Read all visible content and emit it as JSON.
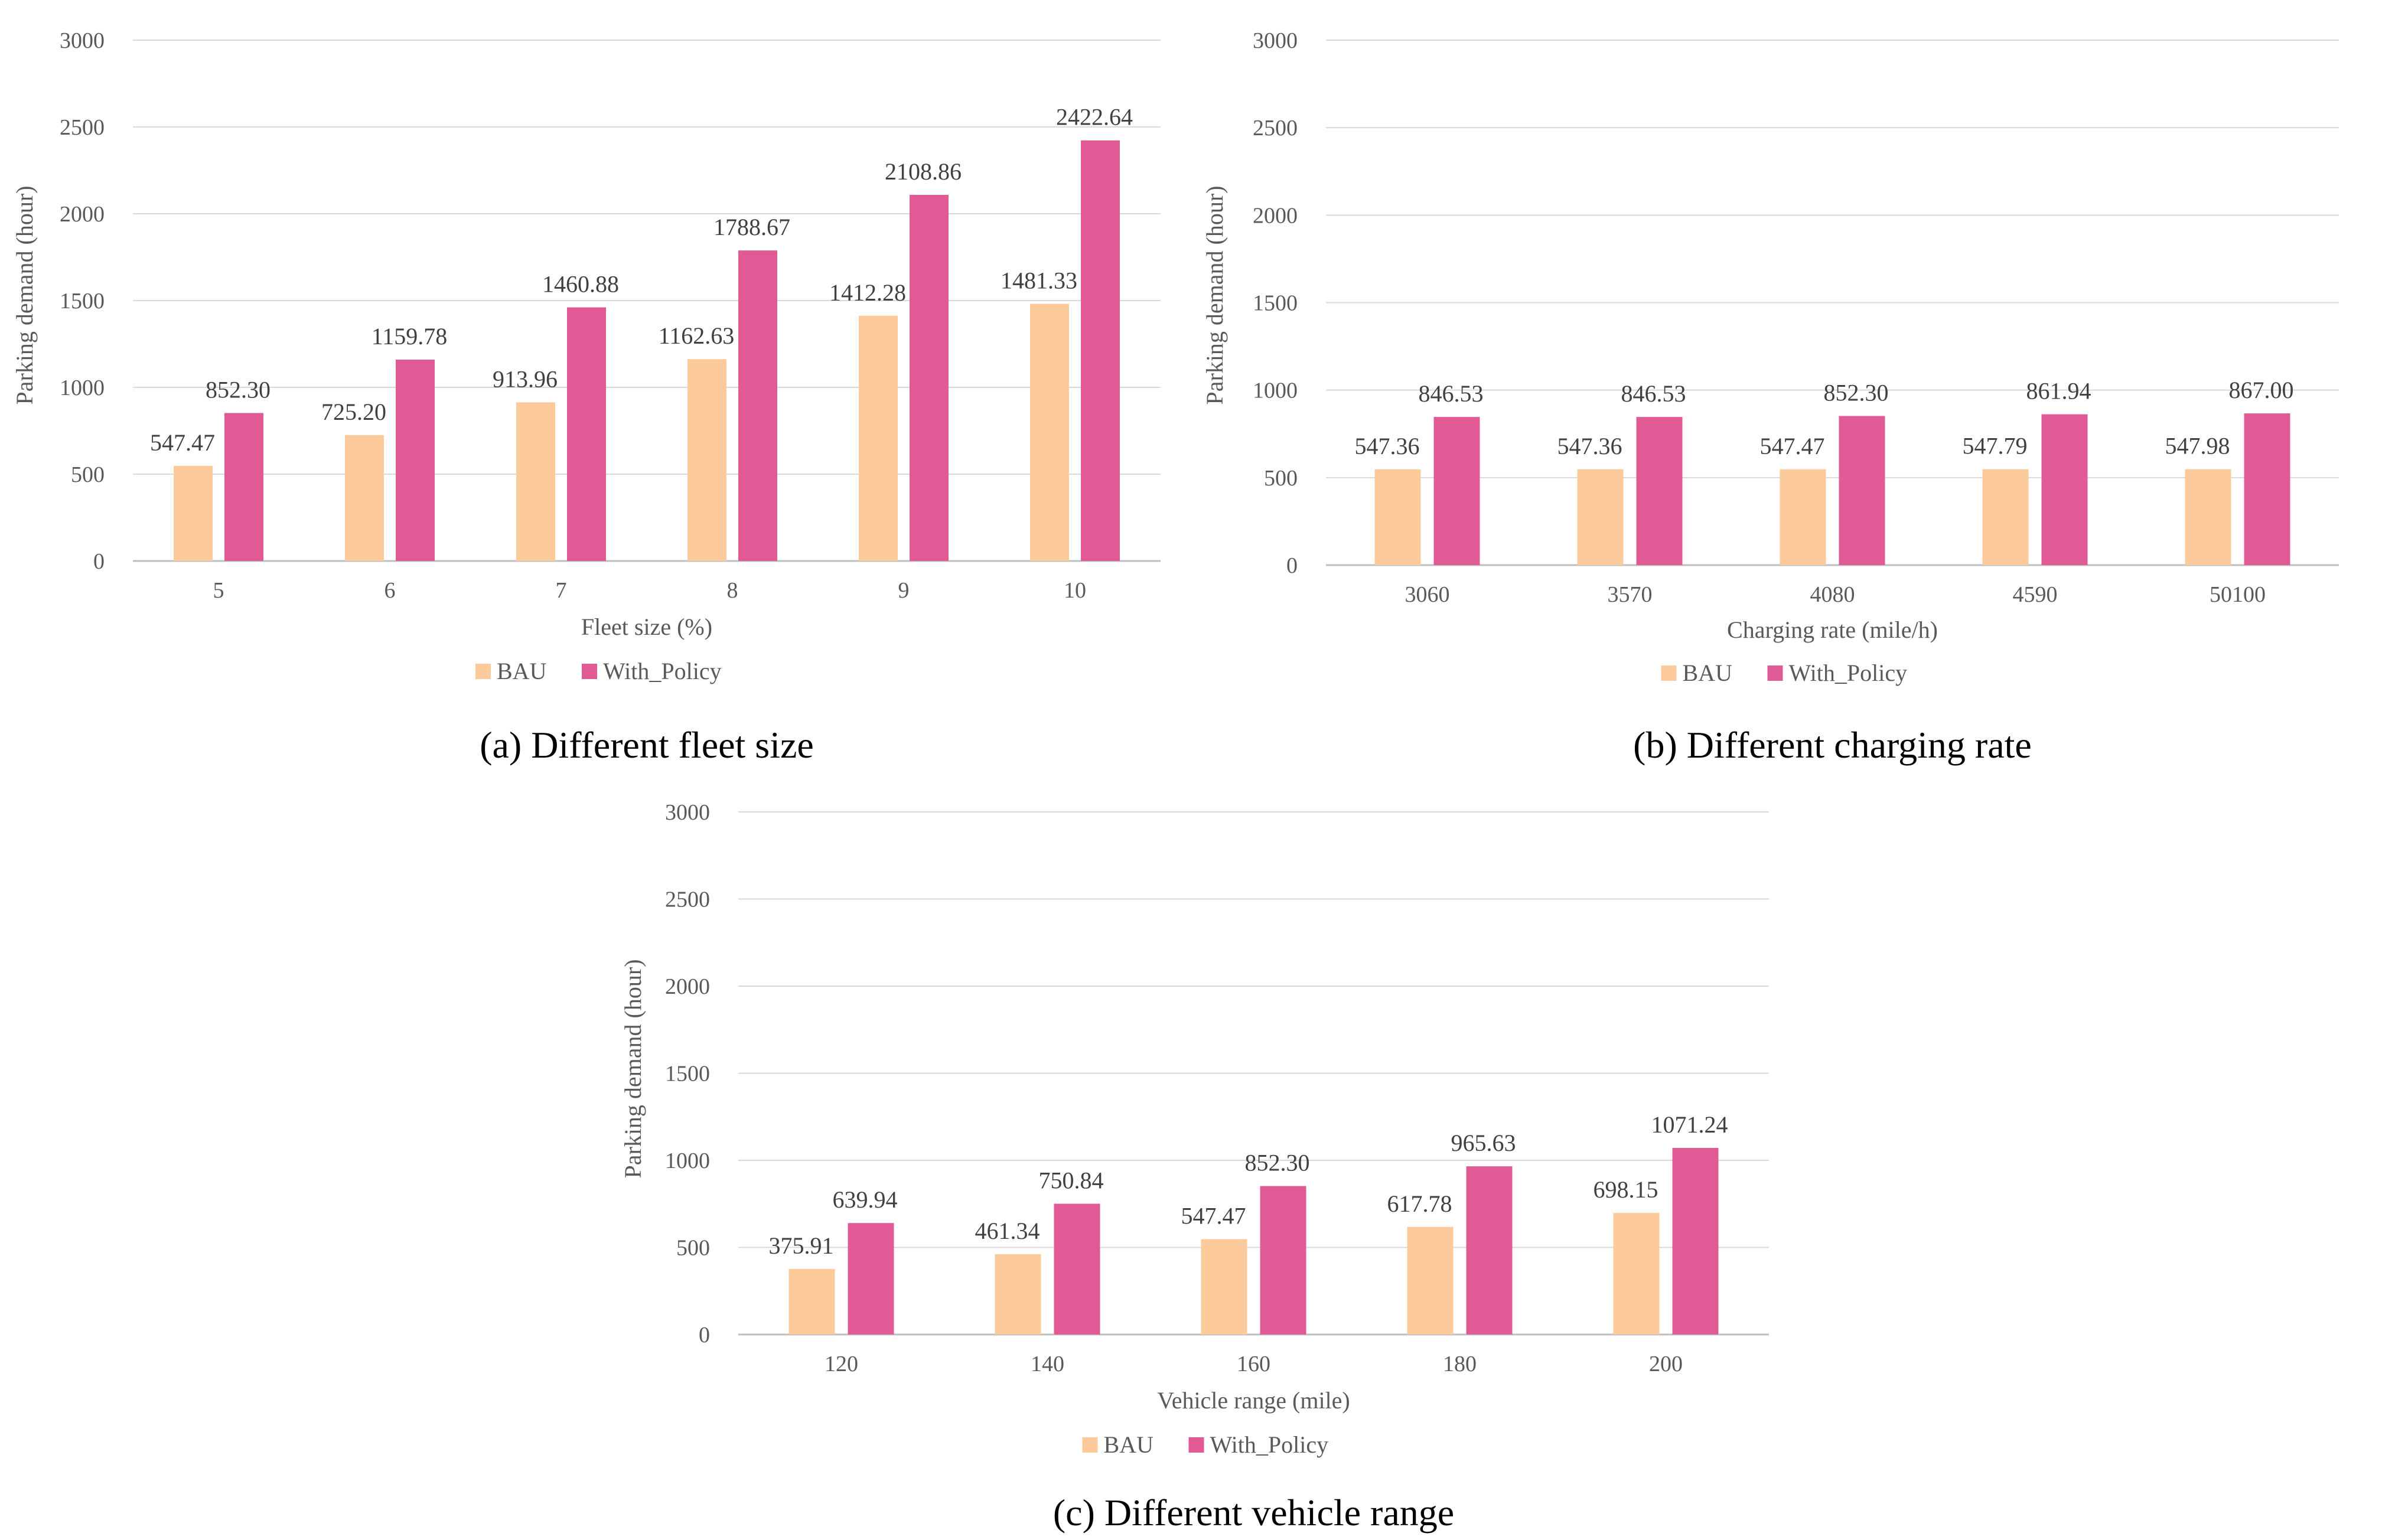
{
  "colors": {
    "bau": "#FDCA9B",
    "policy": "#E05A96",
    "grid": "#D9D9D9",
    "axis": "#BFBFBF"
  },
  "chart_data": [
    {
      "id": "a",
      "type": "bar",
      "caption": "(a) Different fleet size",
      "xlabel": "Fleet size (%)",
      "ylabel": "Parking demand (hour)",
      "ylim": [
        0,
        3000
      ],
      "yticks": [
        "0",
        "500",
        "1000",
        "1500",
        "2000",
        "2500",
        "3000"
      ],
      "categories": [
        "5",
        "6",
        "7",
        "8",
        "9",
        "10"
      ],
      "legend": [
        "BAU",
        "With_Policy"
      ],
      "series": [
        {
          "name": "BAU",
          "values": [
            547.47,
            725.2,
            913.96,
            1162.63,
            1412.28,
            1481.33
          ],
          "labels": [
            "547.47",
            "725.20",
            "913.96",
            "1162.63",
            "1412.28",
            "1481.33"
          ]
        },
        {
          "name": "With_Policy",
          "values": [
            852.3,
            1159.78,
            1460.88,
            1788.67,
            2108.86,
            2422.64
          ],
          "labels": [
            "852.30",
            "1159.78",
            "1460.88",
            "1788.67",
            "2108.86",
            "2422.64"
          ]
        }
      ]
    },
    {
      "id": "b",
      "type": "bar",
      "caption": "(b) Different charging rate",
      "xlabel": "Charging rate (mile/h)",
      "ylabel": "Parking demand (hour)",
      "ylim": [
        0,
        3000
      ],
      "yticks": [
        "0",
        "500",
        "1000",
        "1500",
        "2000",
        "2500",
        "3000"
      ],
      "categories": [
        "3060",
        "3570",
        "4080",
        "4590",
        "50100"
      ],
      "legend": [
        "BAU",
        "With_Policy"
      ],
      "series": [
        {
          "name": "BAU",
          "values": [
            547.36,
            547.36,
            547.47,
            547.79,
            547.98
          ],
          "labels": [
            "547.36",
            "547.36",
            "547.47",
            "547.79",
            "547.98"
          ]
        },
        {
          "name": "With_Policy",
          "values": [
            846.53,
            846.53,
            852.3,
            861.94,
            867.0
          ],
          "labels": [
            "846.53",
            "846.53",
            "852.30",
            "861.94",
            "867.00"
          ]
        }
      ]
    },
    {
      "id": "c",
      "type": "bar",
      "caption": "(c) Different vehicle range",
      "xlabel": "Vehicle range (mile)",
      "ylabel": "Parking demand (hour)",
      "ylim": [
        0,
        3000
      ],
      "yticks": [
        "0",
        "500",
        "1000",
        "1500",
        "2000",
        "2500",
        "3000"
      ],
      "categories": [
        "120",
        "140",
        "160",
        "180",
        "200"
      ],
      "legend": [
        "BAU",
        "With_Policy"
      ],
      "series": [
        {
          "name": "BAU",
          "values": [
            375.91,
            461.34,
            547.47,
            617.78,
            698.15
          ],
          "labels": [
            "375.91",
            "461.34",
            "547.47",
            "617.78",
            "698.15"
          ]
        },
        {
          "name": "With_Policy",
          "values": [
            639.94,
            750.84,
            852.3,
            965.63,
            1071.24
          ],
          "labels": [
            "639.94",
            "750.84",
            "852.30",
            "965.63",
            "1071.24"
          ]
        }
      ]
    }
  ]
}
